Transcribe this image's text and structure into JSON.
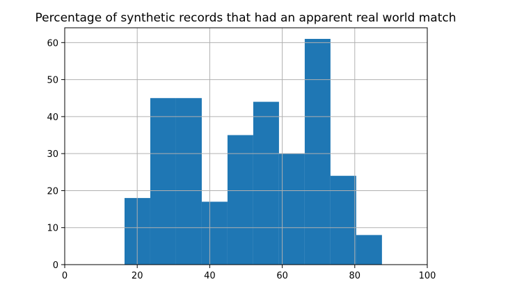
{
  "chart_data": {
    "type": "bar",
    "title": "Percentage of synthetic records that had an apparent real world match",
    "xlabel": "",
    "ylabel": "",
    "xlim": [
      0,
      100
    ],
    "ylim": [
      0,
      64
    ],
    "xticks": [
      0,
      20,
      40,
      60,
      80,
      100
    ],
    "yticks": [
      0,
      10,
      20,
      30,
      40,
      50,
      60
    ],
    "grid": true,
    "bin_edges": [
      16.5,
      23.6,
      30.7,
      37.8,
      44.9,
      52.0,
      59.1,
      66.2,
      73.3,
      80.4,
      87.5
    ],
    "values": [
      18,
      45,
      45,
      17,
      35,
      44,
      30,
      61,
      24,
      8
    ],
    "bar_color": "#1f77b4"
  }
}
